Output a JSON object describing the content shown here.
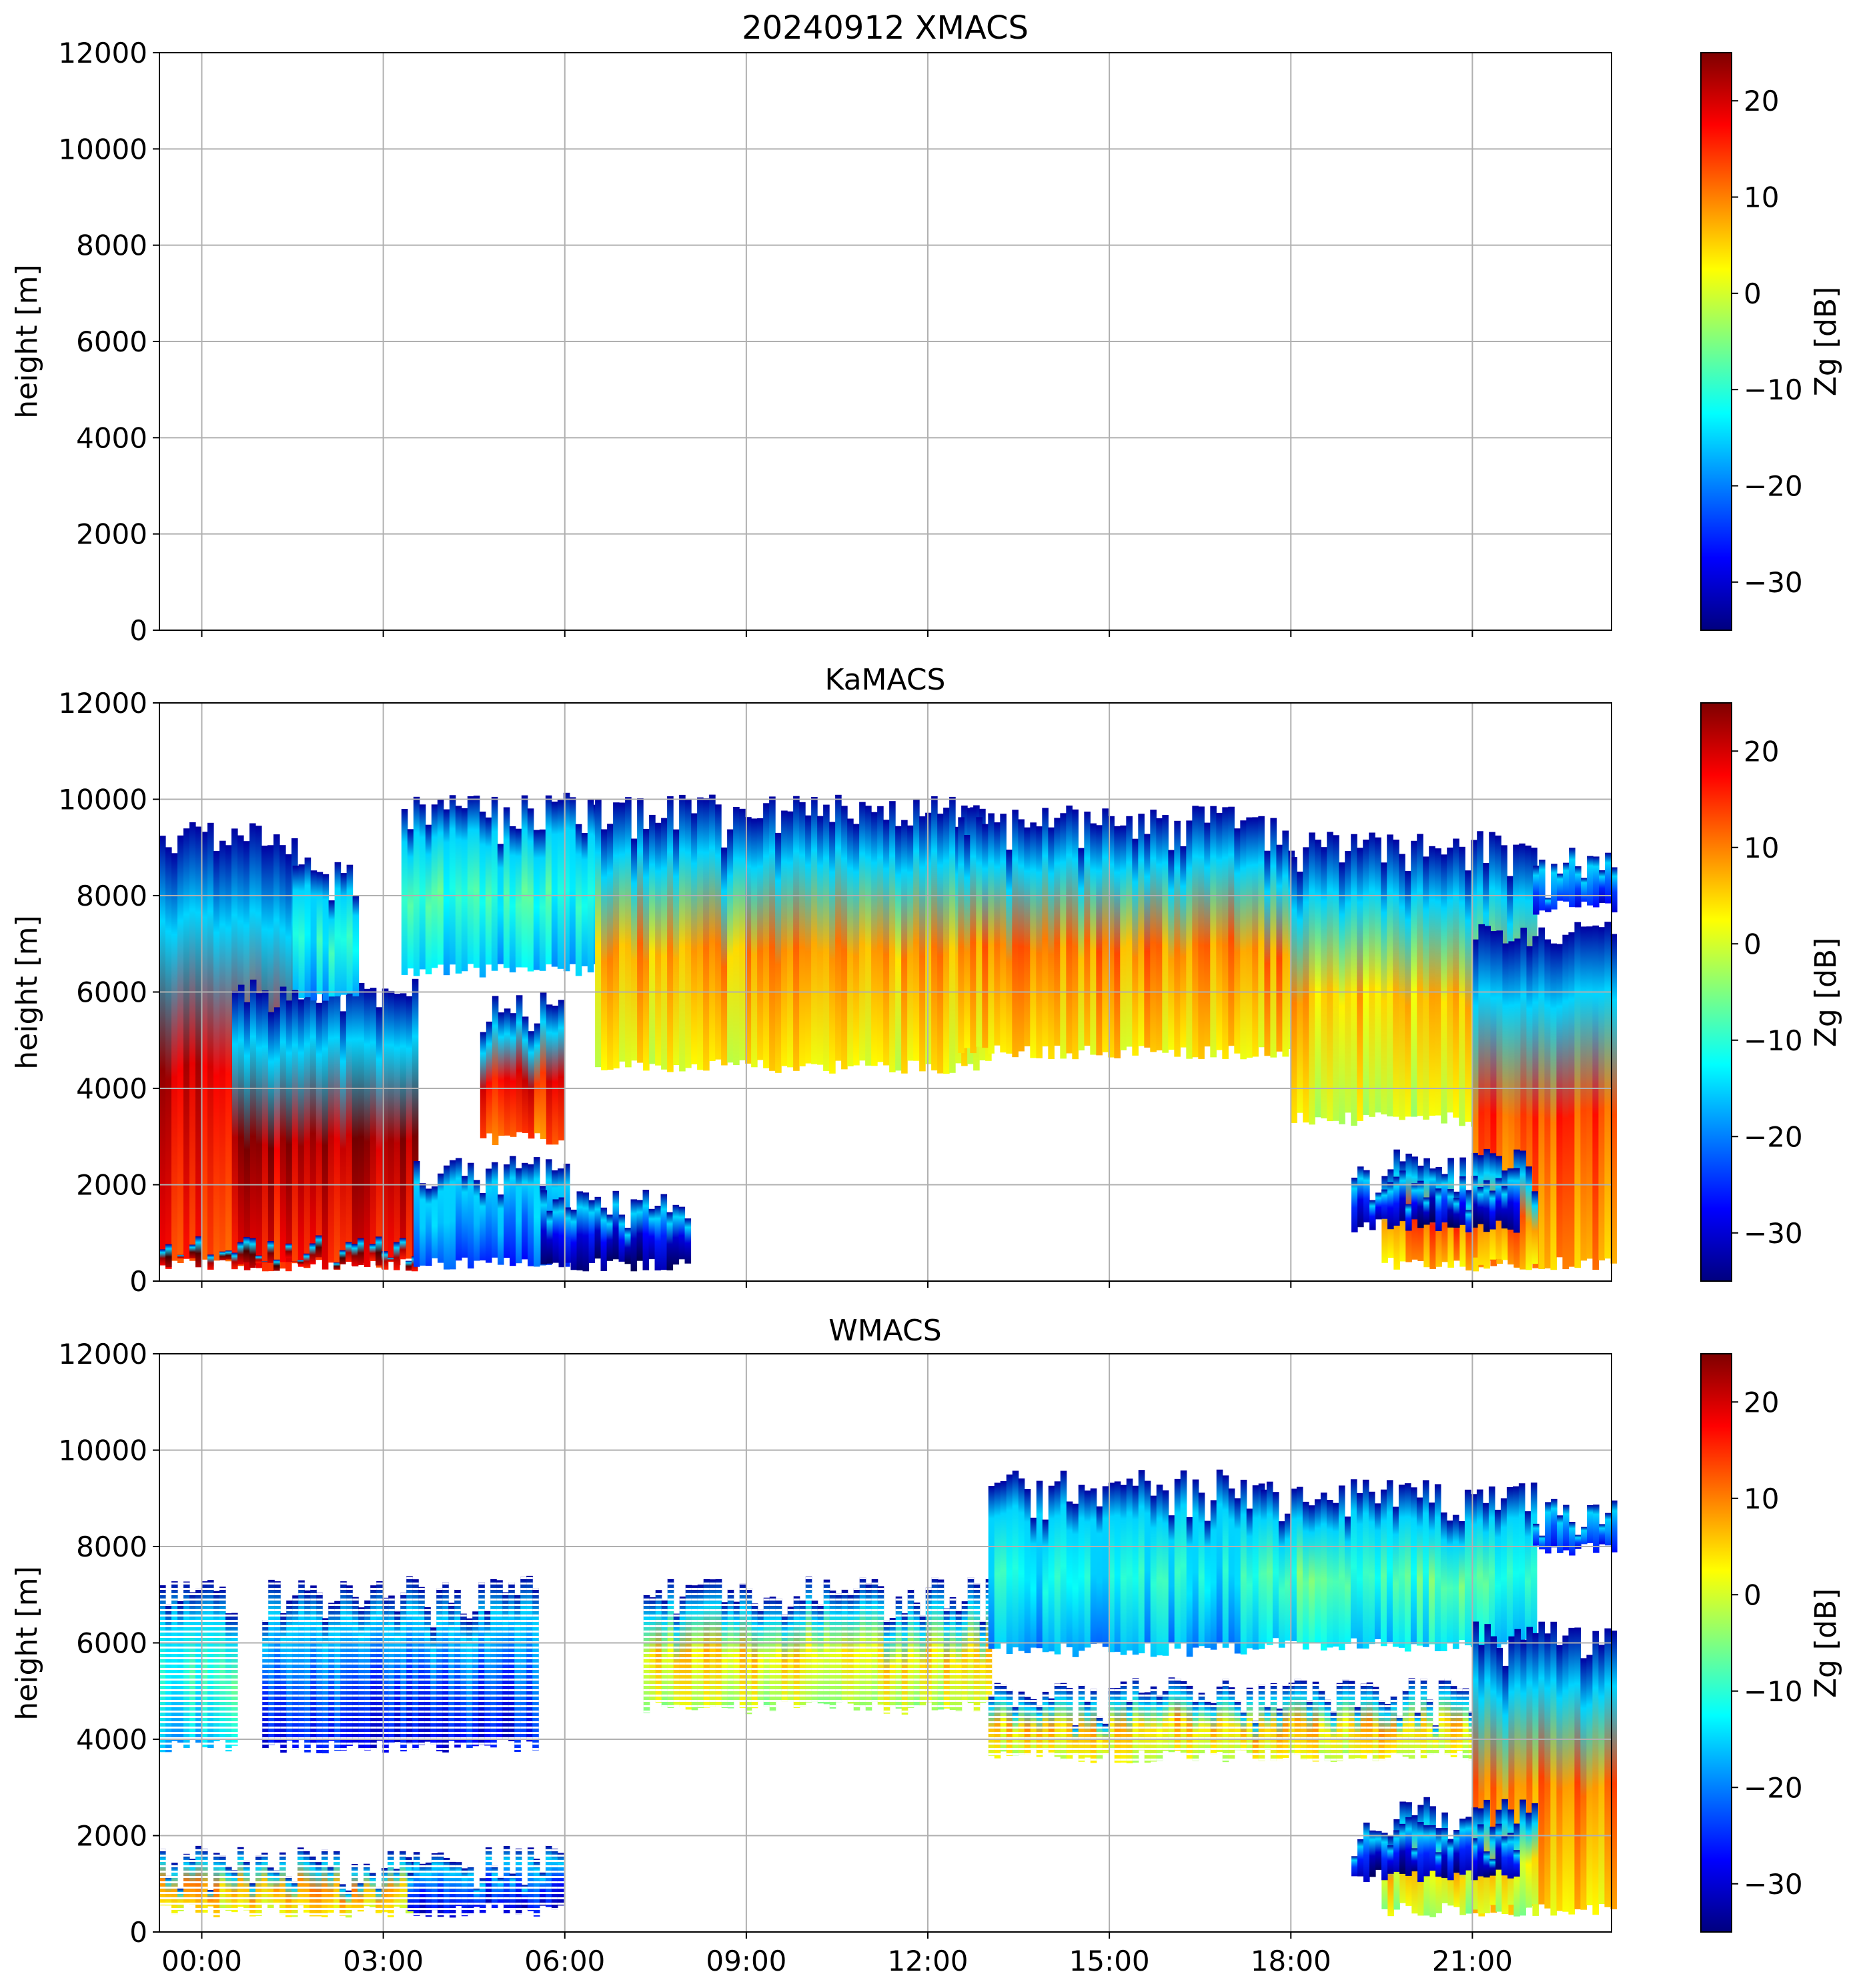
{
  "chart_data": [
    {
      "type": "heatmap",
      "title": "20240912 XMACS",
      "xlabel": "",
      "ylabel": "height [m]",
      "ylim": [
        0,
        12000
      ],
      "yticks": [
        0,
        2000,
        4000,
        6000,
        8000,
        10000,
        12000
      ],
      "xlim_hours": [
        -0.7,
        23.3
      ],
      "xticks": [
        {
          "label": "00:00",
          "hour": 0
        },
        {
          "label": "03:00",
          "hour": 3
        },
        {
          "label": "06:00",
          "hour": 6
        },
        {
          "label": "09:00",
          "hour": 9
        },
        {
          "label": "12:00",
          "hour": 12
        },
        {
          "label": "15:00",
          "hour": 15
        },
        {
          "label": "18:00",
          "hour": 18
        },
        {
          "label": "21:00",
          "hour": 21
        }
      ],
      "show_xtick_labels": false,
      "grid": true,
      "colorbar": {
        "label": "Zg [dB]",
        "range": [
          -35,
          25
        ],
        "ticks": [
          -30,
          -20,
          -10,
          0,
          10,
          20
        ]
      },
      "echo_regions": []
    },
    {
      "type": "heatmap",
      "title": "KaMACS",
      "xlabel": "",
      "ylabel": "height [m]",
      "ylim": [
        0,
        12000
      ],
      "yticks": [
        0,
        2000,
        4000,
        6000,
        8000,
        10000,
        12000
      ],
      "xlim_hours": [
        -0.7,
        23.3
      ],
      "xticks": [
        {
          "label": "00:00",
          "hour": 0
        },
        {
          "label": "03:00",
          "hour": 3
        },
        {
          "label": "06:00",
          "hour": 6
        },
        {
          "label": "09:00",
          "hour": 9
        },
        {
          "label": "12:00",
          "hour": 12
        },
        {
          "label": "15:00",
          "hour": 15
        },
        {
          "label": "18:00",
          "hour": 18
        },
        {
          "label": "21:00",
          "hour": 21
        }
      ],
      "show_xtick_labels": false,
      "grid": true,
      "colorbar": {
        "label": "Zg [dB]",
        "range": [
          -35,
          25
        ],
        "ticks": [
          -30,
          -20,
          -10,
          0,
          10,
          20
        ]
      },
      "echo_regions": [
        {
          "t0": -0.7,
          "t1": 1.5,
          "top": 9600,
          "base": 200,
          "core": 20
        },
        {
          "t0": 0.5,
          "t1": 3.5,
          "top": 6300,
          "base": 200,
          "core": 22
        },
        {
          "t0": -0.7,
          "t1": 3.5,
          "top": 950,
          "base": 200,
          "core": 25
        },
        {
          "t0": 1.5,
          "t1": 2.5,
          "top": 8800,
          "base": 5800,
          "core": -12
        },
        {
          "t0": 3.5,
          "t1": 6.0,
          "top": 2600,
          "base": 200,
          "core": -18
        },
        {
          "t0": 3.3,
          "t1": 6.5,
          "top": 10200,
          "base": 6300,
          "core": -10
        },
        {
          "t0": 4.6,
          "t1": 5.9,
          "top": 6000,
          "base": 2800,
          "core": 18
        },
        {
          "t0": 5.6,
          "t1": 8.0,
          "top": 1900,
          "base": 200,
          "core": -28
        },
        {
          "t0": 6.5,
          "t1": 13.0,
          "top": 10100,
          "base": 4300,
          "core": 8
        },
        {
          "t0": 12.5,
          "t1": 18.0,
          "top": 9900,
          "base": 4600,
          "core": 10
        },
        {
          "t0": 18.0,
          "t1": 22.0,
          "top": 9400,
          "base": 3200,
          "core": 6
        },
        {
          "t0": 21.0,
          "t1": 23.3,
          "top": 7500,
          "base": 200,
          "core": 14
        },
        {
          "t0": 19.5,
          "t1": 22.0,
          "top": 2800,
          "base": 200,
          "core": 12
        },
        {
          "t0": 19.0,
          "t1": 21.7,
          "top": 2400,
          "base": 1000,
          "core": -28
        },
        {
          "t0": 22.0,
          "t1": 23.3,
          "top": 9000,
          "base": 7600,
          "core": -22
        }
      ]
    },
    {
      "type": "heatmap",
      "title": "WMACS",
      "xlabel": "",
      "ylabel": "height [m]",
      "ylim": [
        0,
        12000
      ],
      "yticks": [
        0,
        2000,
        4000,
        6000,
        8000,
        10000,
        12000
      ],
      "xlim_hours": [
        -0.7,
        23.3
      ],
      "xticks": [
        {
          "label": "00:00",
          "hour": 0
        },
        {
          "label": "03:00",
          "hour": 3
        },
        {
          "label": "06:00",
          "hour": 6
        },
        {
          "label": "09:00",
          "hour": 9
        },
        {
          "label": "12:00",
          "hour": 12
        },
        {
          "label": "15:00",
          "hour": 15
        },
        {
          "label": "18:00",
          "hour": 18
        },
        {
          "label": "21:00",
          "hour": 21
        }
      ],
      "show_xtick_labels": true,
      "grid": true,
      "colorbar": {
        "label": "Zg [dB]",
        "range": [
          -35,
          25
        ],
        "ticks": [
          -30,
          -20,
          -10,
          0,
          10,
          20
        ]
      },
      "echo_regions": [
        {
          "t0": -0.7,
          "t1": 3.5,
          "top": 1800,
          "base": 300,
          "core": 8,
          "striped": true
        },
        {
          "t0": -0.7,
          "t1": 0.5,
          "top": 7400,
          "base": 3700,
          "core": -10,
          "striped": true
        },
        {
          "t0": 3.4,
          "t1": 5.9,
          "top": 1800,
          "base": 300,
          "core": -24,
          "striped": true
        },
        {
          "t0": 1.0,
          "t1": 5.5,
          "top": 7400,
          "base": 3700,
          "core": -22,
          "striped": true
        },
        {
          "t0": 7.3,
          "t1": 13.0,
          "top": 7400,
          "base": 4500,
          "core": 4,
          "striped": true
        },
        {
          "t0": 13.0,
          "t1": 17.5,
          "top": 9600,
          "base": 5700,
          "core": -12
        },
        {
          "t0": 17.5,
          "t1": 22.0,
          "top": 9400,
          "base": 5800,
          "core": -8
        },
        {
          "t0": 13.0,
          "t1": 22.0,
          "top": 5300,
          "base": 3500,
          "core": 6,
          "striped": true
        },
        {
          "t0": 21.0,
          "t1": 23.3,
          "top": 6500,
          "base": 300,
          "core": 10
        },
        {
          "t0": 19.5,
          "t1": 22.0,
          "top": 2800,
          "base": 300,
          "core": 4
        },
        {
          "t0": 19.0,
          "t1": 21.7,
          "top": 2400,
          "base": 1000,
          "core": -28
        },
        {
          "t0": 22.0,
          "t1": 23.3,
          "top": 9000,
          "base": 7800,
          "core": -22
        }
      ]
    }
  ]
}
